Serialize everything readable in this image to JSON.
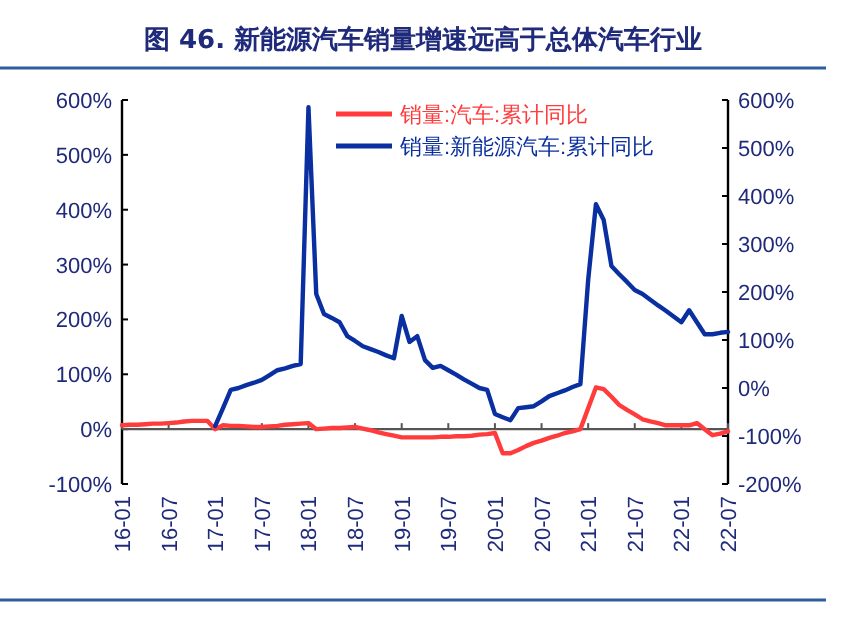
{
  "chart_data": {
    "type": "line",
    "title": "图 46. 新能源汽车销量增速远高于总体汽车行业",
    "categories": [
      "16-01",
      null,
      null,
      null,
      null,
      null,
      "16-07",
      null,
      null,
      null,
      null,
      null,
      "17-01",
      null,
      null,
      null,
      null,
      null,
      "17-07",
      null,
      null,
      null,
      null,
      null,
      "18-01",
      null,
      null,
      null,
      null,
      null,
      "18-07",
      null,
      null,
      null,
      null,
      null,
      "19-01",
      null,
      null,
      null,
      null,
      null,
      "19-07",
      null,
      null,
      null,
      null,
      null,
      "20-01",
      null,
      null,
      null,
      null,
      null,
      "20-07",
      null,
      null,
      null,
      null,
      null,
      "21-01",
      null,
      null,
      null,
      null,
      null,
      "21-07",
      null,
      null,
      null,
      null,
      null,
      "22-01",
      null,
      null,
      null,
      null,
      null,
      "22-07"
    ],
    "ylim": [
      -100,
      600
    ],
    "yticks": [
      {
        "value": -100,
        "label": "-100%"
      },
      {
        "value": 0,
        "label": "0%"
      },
      {
        "value": 100,
        "label": "100%"
      },
      {
        "value": 200,
        "label": "200%"
      },
      {
        "value": 300,
        "label": "300%"
      },
      {
        "value": 400,
        "label": "400%"
      },
      {
        "value": 500,
        "label": "500%"
      },
      {
        "value": 600,
        "label": "600%"
      }
    ],
    "y2lim": [
      -200,
      600
    ],
    "y2ticks": [
      {
        "value": -200,
        "label": "-200%"
      },
      {
        "value": -100,
        "label": "-100%"
      },
      {
        "value": 0,
        "label": "0%"
      },
      {
        "value": 100,
        "label": "100%"
      },
      {
        "value": 200,
        "label": "200%"
      },
      {
        "value": 300,
        "label": "300%"
      },
      {
        "value": 400,
        "label": "400%"
      },
      {
        "value": 500,
        "label": "500%"
      },
      {
        "value": 600,
        "label": "600%"
      }
    ],
    "legend": "top",
    "marker": "none",
    "line_style": "solid",
    "series": [
      {
        "name": "销量:汽车:累计同比",
        "color": "#ff3b3b",
        "values": [
          7,
          8,
          8,
          9,
          10,
          10,
          11,
          12,
          14,
          15,
          15,
          15,
          0,
          7,
          6,
          6,
          5,
          4,
          4,
          5,
          6,
          8,
          9,
          10,
          11,
          0,
          1,
          2,
          2,
          3,
          4,
          1,
          -2,
          -6,
          -9,
          -12,
          -15,
          -15,
          -15,
          -15,
          -15,
          -14,
          -14,
          -13,
          -13,
          -12,
          -10,
          -9,
          -7,
          -44,
          -44,
          -38,
          -31,
          -25,
          -21,
          -16,
          -12,
          -7,
          -4,
          0,
          38,
          76,
          73,
          59,
          44,
          35,
          27,
          18,
          14,
          11,
          7,
          7,
          7,
          7,
          11,
          0,
          -11,
          -8,
          -4
        ]
      },
      {
        "name": "销量:新能源汽车:累计同比",
        "color": "#0a2fa0",
        "axis": "y2",
        "values": [
          null,
          null,
          null,
          null,
          null,
          null,
          null,
          null,
          null,
          null,
          null,
          null,
          -79,
          -42,
          -4,
          0,
          6,
          11,
          17,
          27,
          37,
          41,
          46,
          50,
          585,
          196,
          154,
          146,
          137,
          108,
          98,
          87,
          81,
          75,
          68,
          62,
          150,
          96,
          108,
          58,
          42,
          46,
          37,
          28,
          18,
          9,
          0,
          -4,
          -54,
          -61,
          -67,
          -42,
          -40,
          -38,
          -28,
          -17,
          -11,
          -5,
          2,
          8,
          225,
          383,
          350,
          254,
          237,
          221,
          204,
          196,
          184,
          172,
          161,
          149,
          137,
          162,
          137,
          112,
          112,
          115,
          117
        ]
      }
    ]
  }
}
